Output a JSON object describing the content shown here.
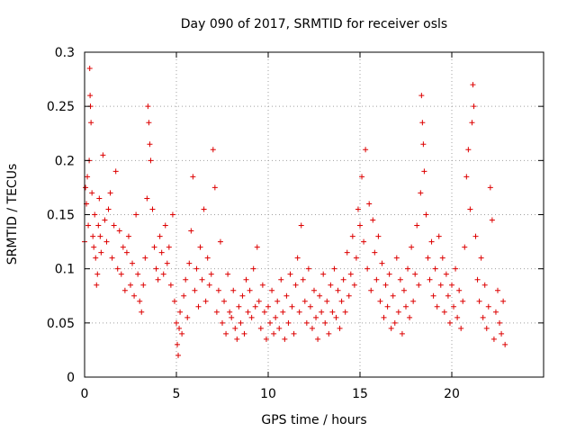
{
  "chart_data": {
    "type": "scatter",
    "title": "Day 090 of 2017, SRMTID for receiver osls",
    "xlabel": "GPS time / hours",
    "ylabel": "SRMTID / TECUs",
    "xlim": [
      0,
      25
    ],
    "ylim": [
      0,
      0.3
    ],
    "x_ticks": [
      0,
      5,
      10,
      15,
      20
    ],
    "x_tick_labels": [
      "0",
      "5",
      "10",
      "15",
      "20"
    ],
    "y_ticks": [
      0,
      0.05,
      0.1,
      0.15,
      0.2,
      0.25,
      0.3
    ],
    "y_tick_labels": [
      "0",
      "0.05",
      "0.1",
      "0.15",
      "0.2",
      "0.25",
      "0.3"
    ],
    "grid": true,
    "marker": "+",
    "marker_color": "#dd0000",
    "series": [
      {
        "name": "SRMTID",
        "points": [
          [
            0.0,
            0.125
          ],
          [
            0.05,
            0.175
          ],
          [
            0.1,
            0.16
          ],
          [
            0.15,
            0.185
          ],
          [
            0.2,
            0.14
          ],
          [
            0.25,
            0.2
          ],
          [
            0.28,
            0.285
          ],
          [
            0.3,
            0.26
          ],
          [
            0.32,
            0.25
          ],
          [
            0.35,
            0.235
          ],
          [
            0.4,
            0.17
          ],
          [
            0.45,
            0.13
          ],
          [
            0.5,
            0.12
          ],
          [
            0.55,
            0.15
          ],
          [
            0.6,
            0.11
          ],
          [
            0.65,
            0.085
          ],
          [
            0.7,
            0.095
          ],
          [
            0.75,
            0.14
          ],
          [
            0.8,
            0.165
          ],
          [
            0.85,
            0.13
          ],
          [
            0.9,
            0.115
          ],
          [
            1.0,
            0.205
          ],
          [
            1.1,
            0.145
          ],
          [
            1.2,
            0.125
          ],
          [
            1.3,
            0.155
          ],
          [
            1.4,
            0.17
          ],
          [
            1.5,
            0.11
          ],
          [
            1.6,
            0.14
          ],
          [
            1.7,
            0.19
          ],
          [
            1.8,
            0.1
          ],
          [
            1.9,
            0.135
          ],
          [
            2.0,
            0.095
          ],
          [
            2.1,
            0.12
          ],
          [
            2.2,
            0.08
          ],
          [
            2.3,
            0.115
          ],
          [
            2.4,
            0.13
          ],
          [
            2.5,
            0.085
          ],
          [
            2.6,
            0.105
          ],
          [
            2.7,
            0.075
          ],
          [
            2.8,
            0.15
          ],
          [
            2.9,
            0.095
          ],
          [
            3.0,
            0.07
          ],
          [
            3.1,
            0.06
          ],
          [
            3.2,
            0.085
          ],
          [
            3.3,
            0.11
          ],
          [
            3.4,
            0.165
          ],
          [
            3.45,
            0.25
          ],
          [
            3.5,
            0.235
          ],
          [
            3.55,
            0.215
          ],
          [
            3.6,
            0.2
          ],
          [
            3.7,
            0.155
          ],
          [
            3.8,
            0.12
          ],
          [
            3.9,
            0.1
          ],
          [
            4.0,
            0.09
          ],
          [
            4.1,
            0.13
          ],
          [
            4.2,
            0.115
          ],
          [
            4.3,
            0.095
          ],
          [
            4.4,
            0.14
          ],
          [
            4.5,
            0.105
          ],
          [
            4.6,
            0.12
          ],
          [
            4.7,
            0.085
          ],
          [
            4.8,
            0.15
          ],
          [
            4.9,
            0.07
          ],
          [
            5.0,
            0.05
          ],
          [
            5.05,
            0.03
          ],
          [
            5.1,
            0.02
          ],
          [
            5.15,
            0.045
          ],
          [
            5.2,
            0.06
          ],
          [
            5.3,
            0.04
          ],
          [
            5.4,
            0.075
          ],
          [
            5.5,
            0.09
          ],
          [
            5.6,
            0.055
          ],
          [
            5.7,
            0.105
          ],
          [
            5.8,
            0.135
          ],
          [
            5.9,
            0.185
          ],
          [
            6.0,
            0.08
          ],
          [
            6.1,
            0.1
          ],
          [
            6.2,
            0.065
          ],
          [
            6.3,
            0.12
          ],
          [
            6.4,
            0.09
          ],
          [
            6.5,
            0.155
          ],
          [
            6.6,
            0.07
          ],
          [
            6.7,
            0.11
          ],
          [
            6.8,
            0.085
          ],
          [
            6.9,
            0.095
          ],
          [
            7.0,
            0.21
          ],
          [
            7.1,
            0.175
          ],
          [
            7.2,
            0.06
          ],
          [
            7.3,
            0.08
          ],
          [
            7.4,
            0.125
          ],
          [
            7.5,
            0.05
          ],
          [
            7.6,
            0.07
          ],
          [
            7.7,
            0.04
          ],
          [
            7.8,
            0.095
          ],
          [
            7.9,
            0.06
          ],
          [
            8.0,
            0.055
          ],
          [
            8.1,
            0.08
          ],
          [
            8.2,
            0.045
          ],
          [
            8.3,
            0.035
          ],
          [
            8.4,
            0.065
          ],
          [
            8.5,
            0.05
          ],
          [
            8.6,
            0.075
          ],
          [
            8.7,
            0.04
          ],
          [
            8.8,
            0.09
          ],
          [
            8.9,
            0.06
          ],
          [
            9.0,
            0.08
          ],
          [
            9.1,
            0.055
          ],
          [
            9.2,
            0.1
          ],
          [
            9.3,
            0.065
          ],
          [
            9.4,
            0.12
          ],
          [
            9.5,
            0.07
          ],
          [
            9.6,
            0.045
          ],
          [
            9.7,
            0.085
          ],
          [
            9.8,
            0.06
          ],
          [
            9.9,
            0.035
          ],
          [
            10.0,
            0.065
          ],
          [
            10.1,
            0.05
          ],
          [
            10.2,
            0.08
          ],
          [
            10.3,
            0.04
          ],
          [
            10.4,
            0.055
          ],
          [
            10.5,
            0.07
          ],
          [
            10.6,
            0.045
          ],
          [
            10.7,
            0.09
          ],
          [
            10.8,
            0.06
          ],
          [
            10.9,
            0.035
          ],
          [
            11.0,
            0.075
          ],
          [
            11.1,
            0.05
          ],
          [
            11.2,
            0.095
          ],
          [
            11.3,
            0.065
          ],
          [
            11.4,
            0.04
          ],
          [
            11.5,
            0.085
          ],
          [
            11.6,
            0.11
          ],
          [
            11.7,
            0.06
          ],
          [
            11.8,
            0.14
          ],
          [
            11.9,
            0.09
          ],
          [
            12.0,
            0.07
          ],
          [
            12.1,
            0.05
          ],
          [
            12.2,
            0.1
          ],
          [
            12.3,
            0.065
          ],
          [
            12.4,
            0.045
          ],
          [
            12.5,
            0.08
          ],
          [
            12.6,
            0.055
          ],
          [
            12.7,
            0.035
          ],
          [
            12.8,
            0.075
          ],
          [
            12.9,
            0.06
          ],
          [
            13.0,
            0.095
          ],
          [
            13.1,
            0.05
          ],
          [
            13.2,
            0.07
          ],
          [
            13.3,
            0.04
          ],
          [
            13.4,
            0.085
          ],
          [
            13.5,
            0.06
          ],
          [
            13.6,
            0.1
          ],
          [
            13.7,
            0.055
          ],
          [
            13.8,
            0.08
          ],
          [
            13.9,
            0.045
          ],
          [
            14.0,
            0.07
          ],
          [
            14.1,
            0.09
          ],
          [
            14.2,
            0.06
          ],
          [
            14.3,
            0.115
          ],
          [
            14.4,
            0.075
          ],
          [
            14.5,
            0.095
          ],
          [
            14.6,
            0.13
          ],
          [
            14.7,
            0.085
          ],
          [
            14.8,
            0.11
          ],
          [
            14.9,
            0.155
          ],
          [
            15.0,
            0.14
          ],
          [
            15.1,
            0.185
          ],
          [
            15.2,
            0.125
          ],
          [
            15.3,
            0.21
          ],
          [
            15.4,
            0.1
          ],
          [
            15.5,
            0.16
          ],
          [
            15.6,
            0.08
          ],
          [
            15.7,
            0.145
          ],
          [
            15.8,
            0.115
          ],
          [
            15.9,
            0.09
          ],
          [
            16.0,
            0.13
          ],
          [
            16.1,
            0.07
          ],
          [
            16.2,
            0.105
          ],
          [
            16.3,
            0.055
          ],
          [
            16.4,
            0.085
          ],
          [
            16.5,
            0.065
          ],
          [
            16.6,
            0.095
          ],
          [
            16.7,
            0.045
          ],
          [
            16.8,
            0.075
          ],
          [
            16.9,
            0.05
          ],
          [
            17.0,
            0.11
          ],
          [
            17.1,
            0.06
          ],
          [
            17.2,
            0.09
          ],
          [
            17.3,
            0.04
          ],
          [
            17.4,
            0.08
          ],
          [
            17.5,
            0.065
          ],
          [
            17.6,
            0.1
          ],
          [
            17.7,
            0.055
          ],
          [
            17.8,
            0.12
          ],
          [
            17.9,
            0.07
          ],
          [
            18.0,
            0.095
          ],
          [
            18.1,
            0.14
          ],
          [
            18.2,
            0.085
          ],
          [
            18.3,
            0.17
          ],
          [
            18.35,
            0.26
          ],
          [
            18.4,
            0.235
          ],
          [
            18.45,
            0.215
          ],
          [
            18.5,
            0.19
          ],
          [
            18.6,
            0.15
          ],
          [
            18.7,
            0.11
          ],
          [
            18.8,
            0.09
          ],
          [
            18.9,
            0.125
          ],
          [
            19.0,
            0.075
          ],
          [
            19.1,
            0.1
          ],
          [
            19.2,
            0.065
          ],
          [
            19.3,
            0.13
          ],
          [
            19.4,
            0.085
          ],
          [
            19.5,
            0.11
          ],
          [
            19.6,
            0.06
          ],
          [
            19.7,
            0.095
          ],
          [
            19.8,
            0.075
          ],
          [
            19.9,
            0.05
          ],
          [
            20.0,
            0.085
          ],
          [
            20.1,
            0.065
          ],
          [
            20.2,
            0.1
          ],
          [
            20.3,
            0.055
          ],
          [
            20.4,
            0.08
          ],
          [
            20.5,
            0.045
          ],
          [
            20.6,
            0.07
          ],
          [
            20.7,
            0.12
          ],
          [
            20.8,
            0.185
          ],
          [
            20.9,
            0.21
          ],
          [
            21.0,
            0.155
          ],
          [
            21.1,
            0.235
          ],
          [
            21.15,
            0.27
          ],
          [
            21.2,
            0.25
          ],
          [
            21.3,
            0.13
          ],
          [
            21.4,
            0.09
          ],
          [
            21.5,
            0.07
          ],
          [
            21.6,
            0.11
          ],
          [
            21.7,
            0.055
          ],
          [
            21.8,
            0.085
          ],
          [
            21.9,
            0.045
          ],
          [
            22.0,
            0.065
          ],
          [
            22.1,
            0.175
          ],
          [
            22.2,
            0.145
          ],
          [
            22.3,
            0.035
          ],
          [
            22.4,
            0.06
          ],
          [
            22.5,
            0.08
          ],
          [
            22.6,
            0.05
          ],
          [
            22.7,
            0.04
          ],
          [
            22.8,
            0.07
          ],
          [
            22.9,
            0.03
          ]
        ]
      }
    ]
  }
}
